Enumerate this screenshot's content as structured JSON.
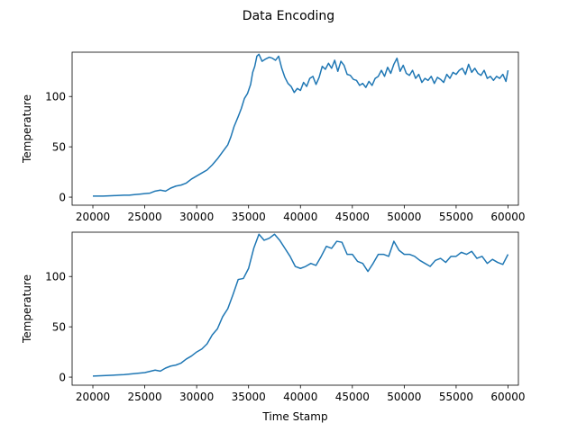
{
  "chart_data": {
    "type": "line",
    "suptitle": "Data Encoding",
    "panels": [
      {
        "xlabel": "",
        "ylabel": "Temperature",
        "xlim": [
          18000,
          61000
        ],
        "ylim": [
          -8,
          144
        ],
        "xticks": [
          20000,
          25000,
          30000,
          35000,
          40000,
          45000,
          50000,
          55000,
          60000
        ],
        "yticks": [
          0,
          50,
          100
        ],
        "series": [
          {
            "color": "#1f77b4",
            "x": [
              20000,
              21000,
              22000,
              23000,
              23500,
              24000,
              24500,
              25000,
              25500,
              26000,
              26500,
              27000,
              27500,
              28000,
              28500,
              29000,
              29500,
              30000,
              30500,
              31000,
              31500,
              32000,
              32500,
              33000,
              33300,
              33600,
              34000,
              34300,
              34600,
              34900,
              35200,
              35400,
              35600,
              35800,
              36000,
              36300,
              36600,
              37000,
              37300,
              37600,
              37900,
              38200,
              38500,
              38800,
              39100,
              39400,
              39700,
              40000,
              40300,
              40600,
              40900,
              41200,
              41500,
              41800,
              42100,
              42400,
              42700,
              43000,
              43300,
              43600,
              43900,
              44200,
              44500,
              44800,
              45100,
              45400,
              45700,
              46000,
              46300,
              46600,
              46900,
              47200,
              47500,
              47800,
              48100,
              48400,
              48700,
              49000,
              49300,
              49600,
              49900,
              50200,
              50500,
              50800,
              51100,
              51400,
              51700,
              52000,
              52300,
              52600,
              52900,
              53200,
              53500,
              53800,
              54100,
              54400,
              54700,
              55000,
              55300,
              55600,
              55900,
              56200,
              56500,
              56800,
              57100,
              57400,
              57700,
              58000,
              58300,
              58600,
              58900,
              59200,
              59500,
              59800,
              60000
            ],
            "y": [
              1,
              1,
              1.5,
              2,
              2,
              2.5,
              3,
              3.5,
              4,
              6,
              7,
              6,
              9,
              11,
              12,
              14,
              18,
              21,
              24,
              27,
              32,
              38,
              45,
              52,
              60,
              70,
              80,
              88,
              98,
              103,
              112,
              124,
              130,
              140,
              142,
              135,
              137,
              139,
              138,
              136,
              140,
              128,
              119,
              113,
              110,
              104,
              108,
              106,
              114,
              110,
              118,
              120,
              112,
              119,
              130,
              127,
              133,
              128,
              136,
              125,
              135,
              131,
              122,
              121,
              117,
              116,
              111,
              113,
              109,
              115,
              111,
              118,
              120,
              126,
              120,
              129,
              123,
              132,
              138,
              125,
              131,
              123,
              121,
              126,
              118,
              122,
              114,
              118,
              116,
              120,
              113,
              119,
              117,
              114,
              122,
              118,
              124,
              122,
              126,
              128,
              122,
              132,
              124,
              128,
              123,
              121,
              126,
              118,
              120,
              116,
              120,
              118,
              122,
              115,
              126
            ]
          }
        ]
      },
      {
        "xlabel": "Time Stamp",
        "ylabel": "Temperature",
        "xlim": [
          18000,
          61000
        ],
        "ylim": [
          -8,
          144
        ],
        "xticks": [
          20000,
          25000,
          30000,
          35000,
          40000,
          45000,
          50000,
          55000,
          60000
        ],
        "yticks": [
          0,
          50,
          100
        ],
        "series": [
          {
            "color": "#1f77b4",
            "x": [
              20000,
              21000,
              22000,
              23000,
              24000,
              25000,
              26000,
              26500,
              27000,
              27500,
              28000,
              28500,
              29000,
              29500,
              30000,
              30500,
              31000,
              31500,
              32000,
              32500,
              33000,
              33500,
              34000,
              34500,
              35000,
              35500,
              36000,
              36500,
              37000,
              37500,
              38000,
              38500,
              39000,
              39500,
              40000,
              40500,
              41000,
              41500,
              42000,
              42500,
              43000,
              43500,
              44000,
              44500,
              45000,
              45500,
              46000,
              46500,
              47000,
              47500,
              48000,
              48500,
              49000,
              49500,
              50000,
              50500,
              51000,
              51500,
              52000,
              52500,
              53000,
              53500,
              54000,
              54500,
              55000,
              55500,
              56000,
              56500,
              57000,
              57500,
              58000,
              58500,
              59000,
              59500,
              60000
            ],
            "y": [
              1,
              1.5,
              2,
              2.5,
              3.5,
              4.5,
              7,
              6,
              9,
              11,
              12,
              14,
              18,
              21,
              25,
              28,
              33,
              42,
              48,
              60,
              68,
              82,
              97,
              98,
              108,
              128,
              142,
              136,
              138,
              142,
              136,
              128,
              120,
              110,
              108,
              110,
              113,
              111,
              120,
              130,
              128,
              135,
              134,
              122,
              122,
              115,
              113,
              105,
              113,
              122,
              122,
              120,
              135,
              126,
              122,
              122,
              120,
              116,
              113,
              110,
              116,
              118,
              114,
              120,
              120,
              124,
              122,
              125,
              118,
              120,
              113,
              117,
              114,
              112,
              122
            ]
          }
        ]
      }
    ]
  }
}
